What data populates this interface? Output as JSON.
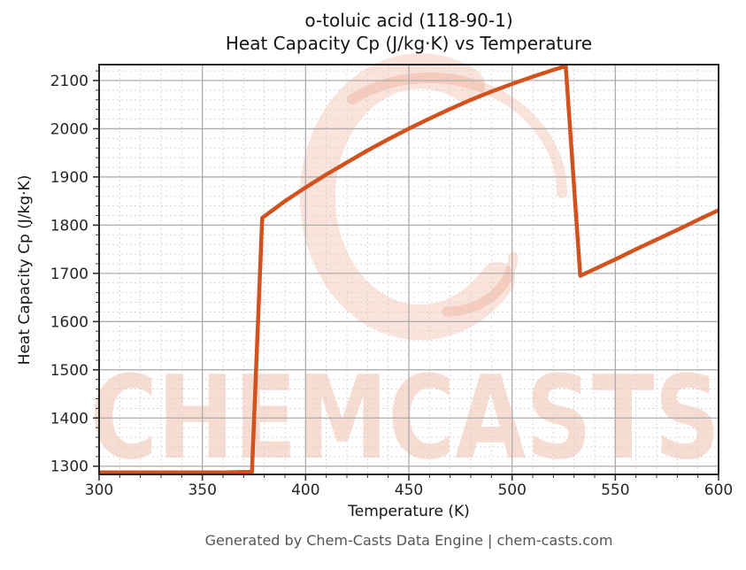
{
  "title": {
    "line1": "o-toluic acid (118-90-1)",
    "line2": "Heat Capacity Cp (J/kg·K) vs Temperature"
  },
  "footer": "Generated by Chem-Casts Data Engine | chem-casts.com",
  "watermark": {
    "text": "CHEMCASTS",
    "logo": "brush-swirl-c",
    "text_color": "rgba(217,82,30,0.20)",
    "logo_color": "rgba(217,82,30,0.16)"
  },
  "colors": {
    "line": "#d2521e",
    "grid_major": "#adadad",
    "grid_minor": "#d3d3d3",
    "spine": "#262626",
    "tick": "#333333",
    "tick_label": "#262626",
    "title_text": "#141414",
    "footer_text": "#55555a"
  },
  "chart_data": {
    "type": "line",
    "title": "o-toluic acid (118-90-1)",
    "subtitle": "Heat Capacity Cp (J/kg·K) vs Temperature",
    "xlabel": "Temperature (K)",
    "ylabel": "Heat Capacity Cp (J/kg·K)",
    "xlim": [
      300,
      600
    ],
    "ylim": [
      1283,
      2133
    ],
    "x_ticks": [
      300,
      350,
      400,
      450,
      500,
      550,
      600
    ],
    "y_ticks": [
      1300,
      1400,
      1500,
      1600,
      1700,
      1800,
      1900,
      2000,
      2100
    ],
    "x_minor_step": 10,
    "y_minor_step": 20,
    "grid": true,
    "legend_position": "none",
    "series": [
      {
        "name": "Heat Capacity Cp",
        "color": "#d2521e",
        "points": [
          [
            300,
            1287
          ],
          [
            310,
            1287
          ],
          [
            320,
            1287
          ],
          [
            330,
            1287
          ],
          [
            340,
            1287
          ],
          [
            350,
            1287
          ],
          [
            360,
            1287
          ],
          [
            370,
            1288
          ],
          [
            374,
            1288
          ],
          [
            379,
            1815
          ],
          [
            390,
            1850
          ],
          [
            400,
            1878
          ],
          [
            410,
            1905
          ],
          [
            420,
            1930
          ],
          [
            430,
            1955
          ],
          [
            440,
            1978
          ],
          [
            450,
            2000
          ],
          [
            460,
            2021
          ],
          [
            470,
            2041
          ],
          [
            480,
            2060
          ],
          [
            490,
            2077
          ],
          [
            500,
            2093
          ],
          [
            510,
            2108
          ],
          [
            520,
            2122
          ],
          [
            526,
            2130
          ],
          [
            533,
            1695
          ],
          [
            540,
            1709
          ],
          [
            550,
            1729
          ],
          [
            560,
            1750
          ],
          [
            570,
            1770
          ],
          [
            580,
            1790
          ],
          [
            590,
            1811
          ],
          [
            600,
            1831
          ]
        ]
      }
    ]
  }
}
